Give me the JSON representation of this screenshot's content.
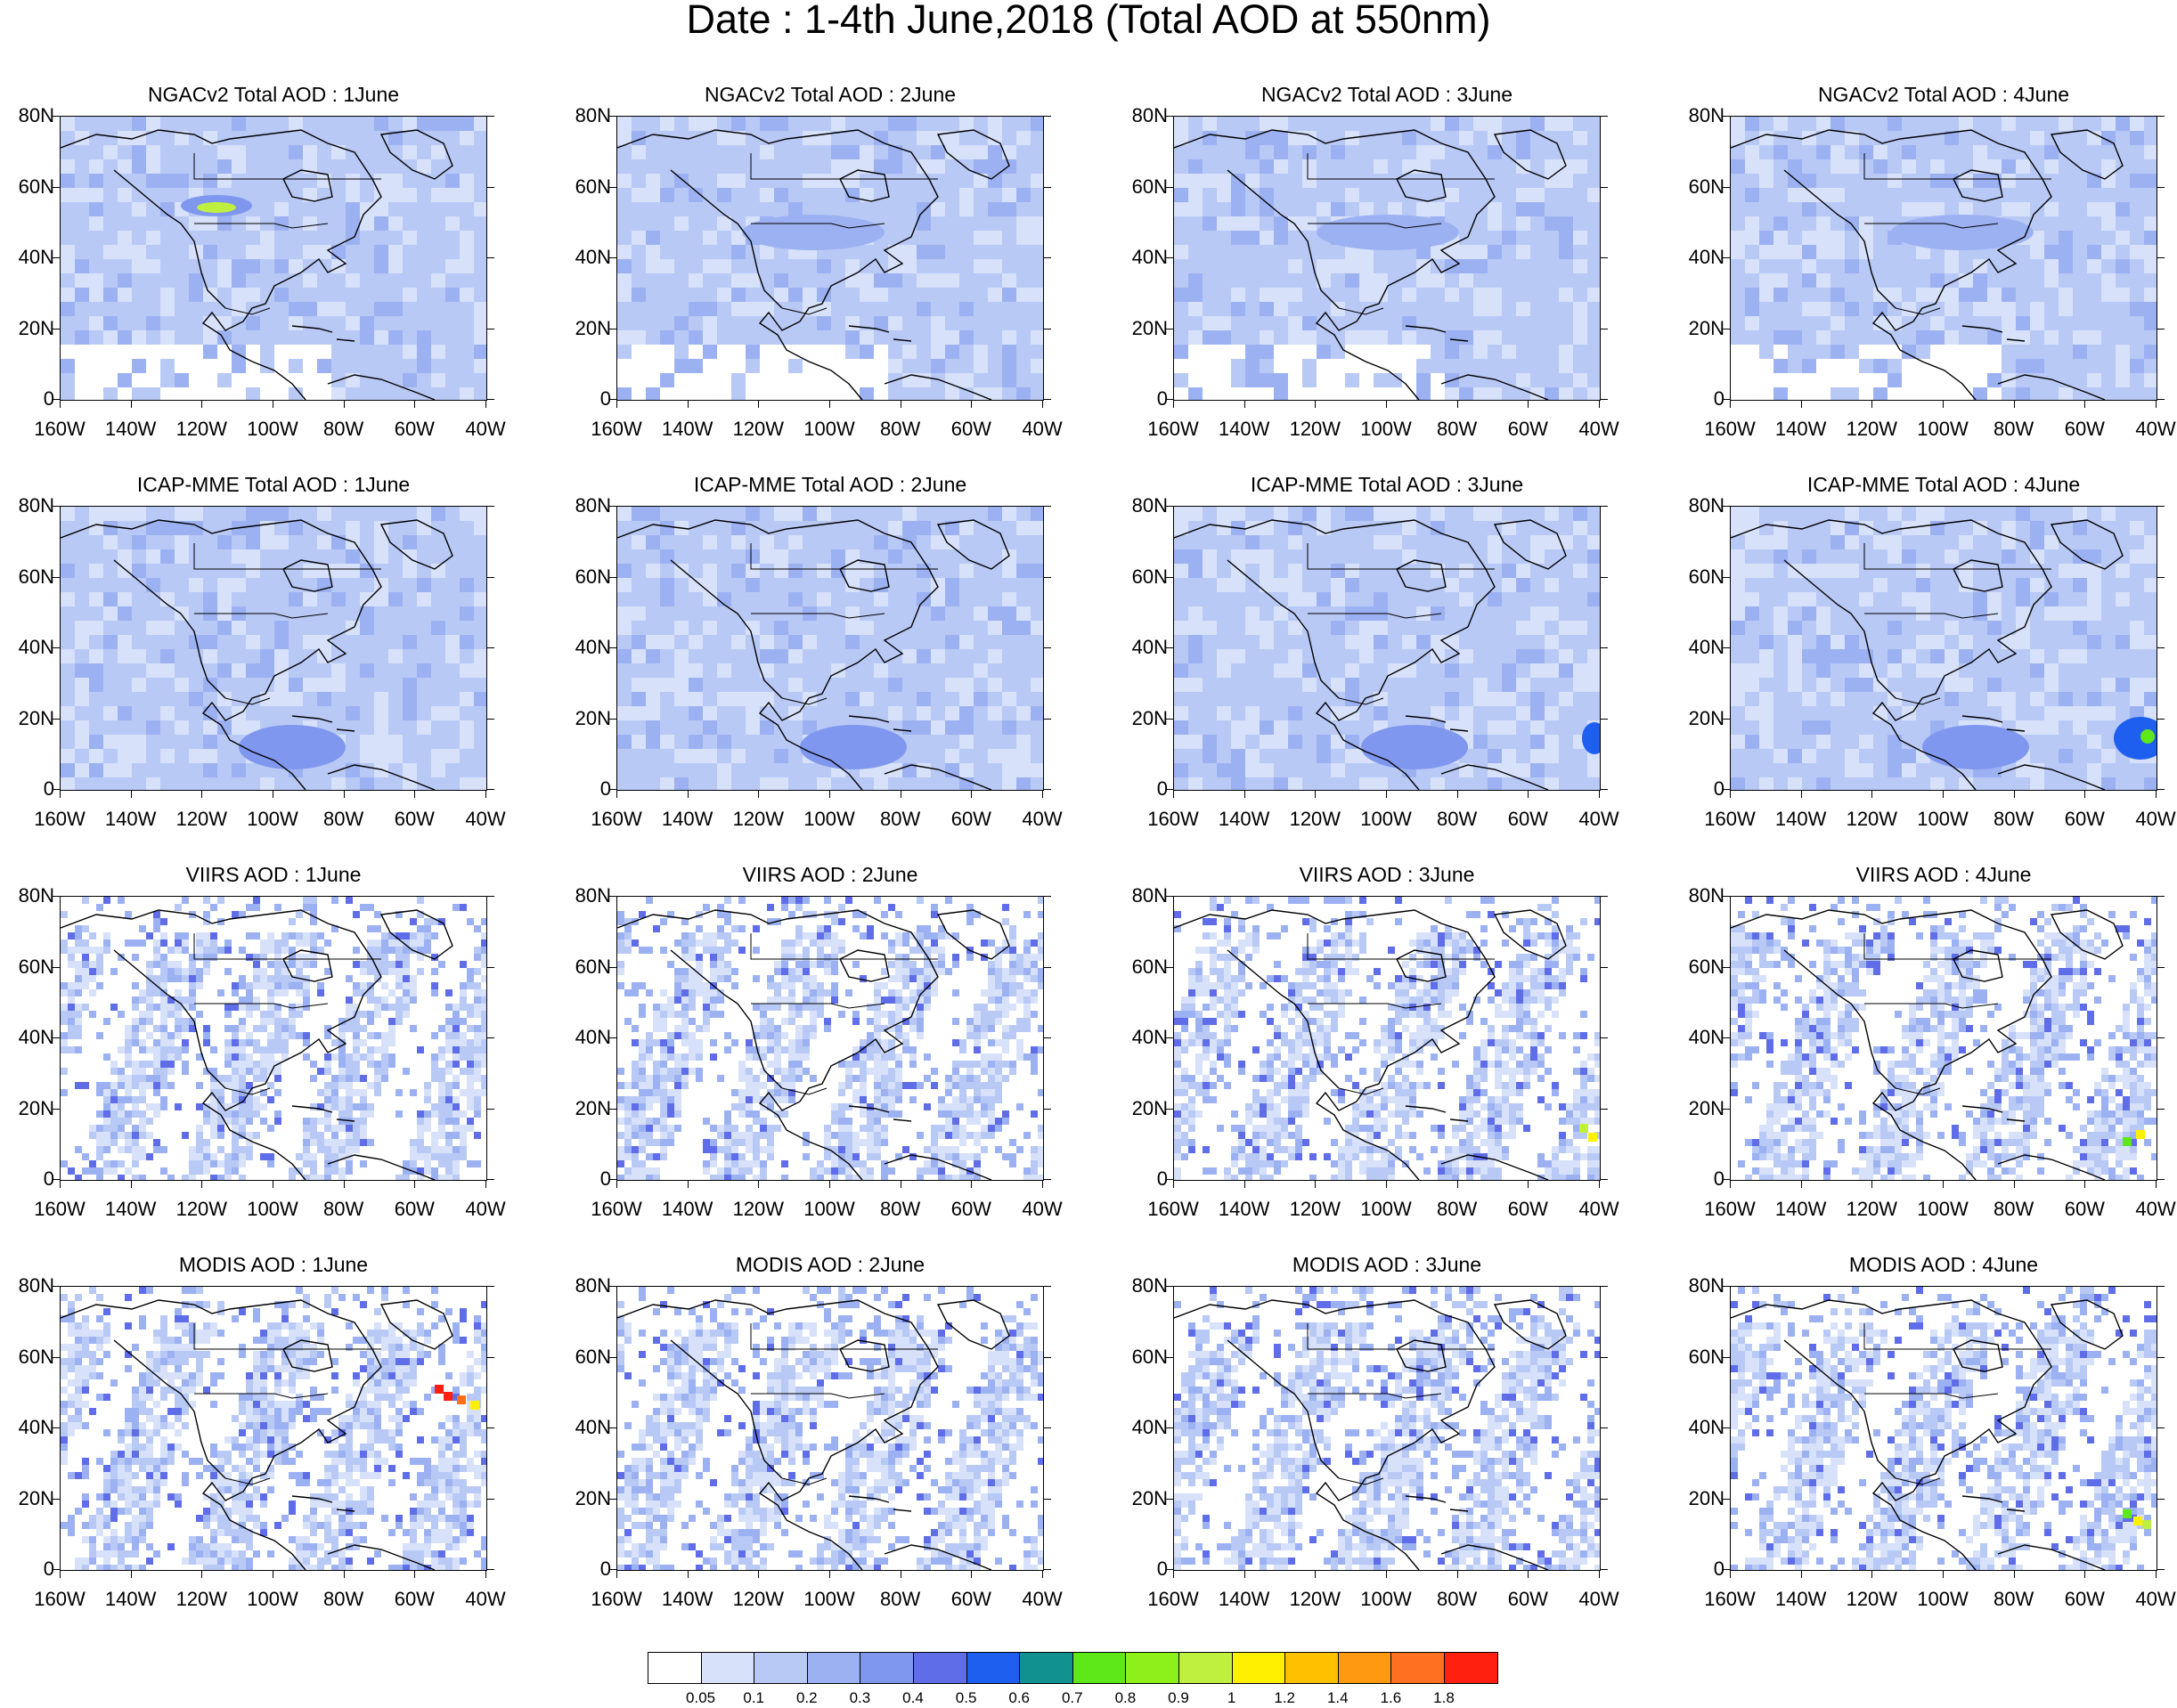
{
  "title": "Date : 1-4th June,2018 (Total AOD at 550nm)",
  "lat_ticks": [
    "80N",
    "60N",
    "40N",
    "20N",
    "0"
  ],
  "lon_ticks": [
    "160W",
    "140W",
    "120W",
    "100W",
    "80W",
    "60W",
    "40W"
  ],
  "rows": [
    {
      "product": "NGACv2",
      "panel_titles": [
        "NGACv2 Total AOD : 1June",
        "NGACv2 Total AOD : 2June",
        "NGACv2 Total AOD : 3June",
        "NGACv2 Total AOD : 4June"
      ],
      "field_type": "smooth"
    },
    {
      "product": "ICAP-MME",
      "panel_titles": [
        "ICAP-MME Total AOD : 1June",
        "ICAP-MME Total AOD : 2June",
        "ICAP-MME Total AOD : 3June",
        "ICAP-MME Total AOD : 4June"
      ],
      "field_type": "smooth"
    },
    {
      "product": "VIIRS",
      "panel_titles": [
        "VIIRS AOD : 1June",
        "VIIRS AOD : 2June",
        "VIIRS AOD : 3June",
        "VIIRS AOD : 4June"
      ],
      "field_type": "swath"
    },
    {
      "product": "MODIS",
      "panel_titles": [
        "MODIS AOD : 1June",
        "MODIS AOD : 2June",
        "MODIS AOD : 3June",
        "MODIS AOD : 4June"
      ],
      "field_type": "swath"
    }
  ],
  "colorbar": {
    "labels": [
      "0.05",
      "0.1",
      "0.2",
      "0.3",
      "0.4",
      "0.5",
      "0.6",
      "0.7",
      "0.8",
      "0.9",
      "1",
      "1.2",
      "1.4",
      "1.6",
      "1.8"
    ],
    "colors": [
      "#ffffff",
      "#d7e1fa",
      "#b9c9f6",
      "#9cb1f2",
      "#7f97ee",
      "#5f6ee8",
      "#1f5ff0",
      "#11918f",
      "#5ee81a",
      "#8ef01a",
      "#bff040",
      "#fff000",
      "#ffc000",
      "#ff9a10",
      "#ff7020",
      "#ff2010"
    ]
  },
  "highlights": {
    "ngac_1june": "wildfire smoke plume near 120W 55N",
    "icap_3_4june": "dust plume near 40W 15N",
    "modis_1june": "high AOD near 55W 50N"
  }
}
